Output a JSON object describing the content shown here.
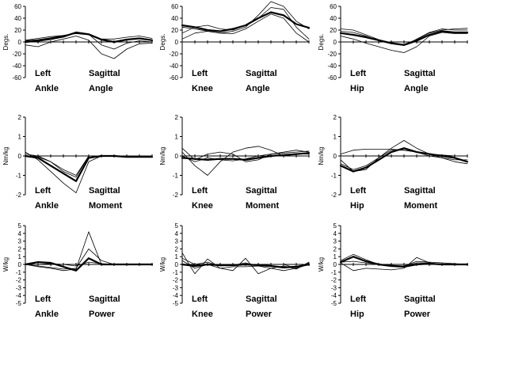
{
  "chart_data": [
    {
      "type": "line",
      "caption": [
        "Left",
        "Ankle",
        "Sagittal",
        "Angle"
      ],
      "ylabel": "Degs.",
      "ylim": [
        -60,
        60
      ],
      "yticks": [
        -60,
        -40,
        -20,
        0,
        20,
        40,
        60
      ],
      "x": [
        0,
        10,
        20,
        30,
        40,
        50,
        60,
        70,
        80,
        90,
        100
      ],
      "series": [
        {
          "values": [
            0,
            2,
            5,
            9,
            16,
            13,
            4,
            0,
            4,
            6,
            3
          ],
          "emphasis": "bold"
        },
        {
          "values": [
            3,
            6,
            9,
            11,
            14,
            12,
            5,
            5,
            8,
            10,
            6
          ]
        },
        {
          "values": [
            -5,
            -8,
            0,
            5,
            10,
            3,
            -20,
            -28,
            -12,
            -3,
            -2
          ]
        },
        {
          "values": [
            2,
            4,
            7,
            11,
            15,
            13,
            -5,
            -12,
            -2,
            2,
            0
          ]
        }
      ]
    },
    {
      "type": "line",
      "caption": [
        "Left",
        "Knee",
        "Sagittal",
        "Angle"
      ],
      "ylabel": "Degs.",
      "ylim": [
        -60,
        60
      ],
      "yticks": [
        -60,
        -40,
        -20,
        0,
        20,
        40,
        60
      ],
      "x": [
        0,
        10,
        20,
        30,
        40,
        50,
        60,
        70,
        80,
        90,
        100
      ],
      "series": [
        {
          "values": [
            28,
            25,
            20,
            18,
            22,
            28,
            40,
            50,
            45,
            30,
            24
          ],
          "emphasis": "bold"
        },
        {
          "values": [
            25,
            22,
            18,
            15,
            18,
            25,
            45,
            68,
            60,
            35,
            22
          ]
        },
        {
          "values": [
            15,
            25,
            28,
            22,
            20,
            28,
            40,
            58,
            55,
            25,
            5
          ]
        },
        {
          "values": [
            5,
            15,
            18,
            15,
            14,
            22,
            35,
            47,
            40,
            15,
            0
          ]
        }
      ]
    },
    {
      "type": "line",
      "caption": [
        "Left",
        "Hip",
        "Sagittal",
        "Angle"
      ],
      "ylabel": "Degs.",
      "ylim": [
        -60,
        60
      ],
      "yticks": [
        -60,
        -40,
        -20,
        0,
        20,
        40,
        60
      ],
      "x": [
        0,
        10,
        20,
        30,
        40,
        50,
        60,
        70,
        80,
        90,
        100
      ],
      "series": [
        {
          "values": [
            15,
            12,
            8,
            3,
            -2,
            -5,
            2,
            12,
            18,
            16,
            16
          ],
          "emphasis": "bold"
        },
        {
          "values": [
            22,
            20,
            12,
            4,
            -2,
            -4,
            4,
            15,
            20,
            22,
            23
          ]
        },
        {
          "values": [
            10,
            5,
            -2,
            -8,
            -14,
            -18,
            -8,
            10,
            16,
            14,
            14
          ]
        },
        {
          "values": [
            18,
            16,
            10,
            2,
            -3,
            -6,
            5,
            16,
            22,
            20,
            20
          ]
        }
      ]
    },
    {
      "type": "line",
      "caption": [
        "Left",
        "Ankle",
        "Sagittal",
        "Moment"
      ],
      "ylabel": "Nm/kg",
      "ylim": [
        -2,
        2
      ],
      "yticks": [
        -2,
        -1,
        0,
        1,
        2
      ],
      "x": [
        0,
        10,
        20,
        30,
        40,
        50,
        60,
        70,
        80,
        90,
        100
      ],
      "series": [
        {
          "values": [
            0,
            -0.1,
            -0.5,
            -0.9,
            -1.3,
            -0.1,
            0,
            0,
            -0.05,
            -0.05,
            -0.05
          ],
          "emphasis": "bold"
        },
        {
          "values": [
            0.1,
            0,
            -0.3,
            -0.8,
            -1.1,
            0,
            0,
            0,
            0,
            0,
            0
          ]
        },
        {
          "values": [
            0.2,
            -0.2,
            -0.8,
            -1.4,
            -1.9,
            -0.3,
            0,
            0,
            0,
            0,
            0
          ]
        },
        {
          "values": [
            0,
            -0.05,
            -0.3,
            -0.7,
            -1.0,
            0,
            0,
            0,
            0,
            0,
            0
          ]
        }
      ]
    },
    {
      "type": "line",
      "caption": [
        "Left",
        "Knee",
        "Sagittal",
        "Moment"
      ],
      "ylabel": "Nm/kg",
      "ylim": [
        -2,
        2
      ],
      "yticks": [
        -2,
        -1,
        0,
        1,
        2
      ],
      "x": [
        0,
        10,
        20,
        30,
        40,
        50,
        60,
        70,
        80,
        90,
        100
      ],
      "series": [
        {
          "values": [
            -0.1,
            -0.15,
            -0.2,
            -0.15,
            -0.15,
            -0.2,
            -0.1,
            0,
            0.05,
            0.1,
            0.15
          ],
          "emphasis": "bold"
        },
        {
          "values": [
            0,
            -0.3,
            -0.1,
            -0.2,
            -0.25,
            -0.15,
            0,
            0.1,
            0.15,
            0.2,
            0.25
          ]
        },
        {
          "values": [
            0.2,
            -0.5,
            -1.0,
            -0.3,
            0.2,
            0.4,
            0.5,
            0.3,
            0,
            0.1,
            0.1
          ]
        },
        {
          "values": [
            0.4,
            -0.2,
            0.1,
            0.2,
            0.1,
            -0.3,
            -0.2,
            0.1,
            0.2,
            0.3,
            0.2
          ]
        }
      ]
    },
    {
      "type": "line",
      "caption": [
        "Left",
        "Hip",
        "Sagittal",
        "Moment"
      ],
      "ylabel": "Nm/kg",
      "ylim": [
        -2,
        2
      ],
      "yticks": [
        -2,
        -1,
        0,
        1,
        2
      ],
      "x": [
        0,
        10,
        20,
        30,
        40,
        50,
        60,
        70,
        80,
        90,
        100
      ],
      "series": [
        {
          "values": [
            -0.5,
            -0.8,
            -0.6,
            -0.2,
            0.2,
            0.4,
            0.2,
            0.1,
            0,
            -0.1,
            -0.3
          ],
          "emphasis": "bold"
        },
        {
          "values": [
            -0.2,
            -0.8,
            -0.7,
            -0.1,
            0.4,
            0.8,
            0.4,
            0.1,
            -0.1,
            -0.2,
            -0.2
          ]
        },
        {
          "values": [
            -0.4,
            -0.7,
            -0.5,
            -0.1,
            0.3,
            0.3,
            0.2,
            0,
            -0.1,
            -0.3,
            -0.4
          ]
        },
        {
          "values": [
            0.1,
            0.3,
            0.35,
            0.35,
            0.35,
            0.3,
            0.2,
            0.1,
            0.05,
            0,
            0
          ]
        }
      ]
    },
    {
      "type": "line",
      "caption": [
        "Left",
        "Ankle",
        "Sagittal",
        "Power"
      ],
      "ylabel": "W/kg",
      "ylim": [
        -5,
        5
      ],
      "yticks": [
        -5,
        -4,
        -3,
        -2,
        -1,
        0,
        1,
        2,
        3,
        4,
        5
      ],
      "x": [
        0,
        10,
        20,
        30,
        40,
        50,
        60,
        70,
        80,
        90,
        100
      ],
      "series": [
        {
          "values": [
            0,
            0.3,
            0.2,
            -0.3,
            -0.8,
            0.8,
            0,
            0,
            0,
            0,
            0
          ],
          "emphasis": "bold"
        },
        {
          "values": [
            0,
            -0.3,
            -0.5,
            -0.8,
            -0.6,
            4.2,
            0,
            0,
            0,
            0,
            0
          ]
        },
        {
          "values": [
            0,
            -0.2,
            -0.4,
            -0.6,
            -0.5,
            2.0,
            0.5,
            0,
            0,
            0,
            0
          ]
        },
        {
          "values": [
            0,
            0,
            0.1,
            0,
            -0.2,
            0.3,
            0.1,
            0,
            0,
            0,
            0
          ]
        }
      ]
    },
    {
      "type": "line",
      "caption": [
        "Left",
        "Knee",
        "Sagittal",
        "Power"
      ],
      "ylabel": "W/kg",
      "ylim": [
        -5,
        5
      ],
      "yticks": [
        -5,
        -4,
        -3,
        -2,
        -1,
        0,
        1,
        2,
        3,
        4,
        5
      ],
      "x": [
        0,
        10,
        20,
        30,
        40,
        50,
        60,
        70,
        80,
        90,
        100
      ],
      "series": [
        {
          "values": [
            0,
            -0.2,
            0,
            -0.1,
            -0.1,
            0,
            -0.1,
            -0.2,
            -0.4,
            -0.3,
            0
          ],
          "emphasis": "bold"
        },
        {
          "values": [
            1.5,
            -1.2,
            0.7,
            -0.5,
            -0.8,
            0.8,
            -1.2,
            -0.5,
            -0.2,
            -0.6,
            0.3
          ]
        },
        {
          "values": [
            0.5,
            -0.5,
            0,
            -0.5,
            -0.3,
            -0.3,
            -0.2,
            -0.5,
            -0.8,
            -0.5,
            0
          ]
        },
        {
          "values": [
            0.8,
            0,
            0.3,
            -0.2,
            -0.1,
            0.2,
            -0.2,
            0,
            0,
            -0.5,
            0.2
          ]
        }
      ]
    },
    {
      "type": "line",
      "caption": [
        "Left",
        "Hip",
        "Sagittal",
        "Power"
      ],
      "ylabel": "W/kg",
      "ylim": [
        -5,
        5
      ],
      "yticks": [
        -5,
        -4,
        -3,
        -2,
        -1,
        0,
        1,
        2,
        3,
        4,
        5
      ],
      "x": [
        0,
        10,
        20,
        30,
        40,
        50,
        60,
        70,
        80,
        90,
        100
      ],
      "series": [
        {
          "values": [
            0.3,
            1.0,
            0.4,
            0,
            -0.2,
            -0.3,
            0,
            0.1,
            0,
            0,
            0
          ],
          "emphasis": "bold"
        },
        {
          "values": [
            0.5,
            1.3,
            0.6,
            0,
            -0.2,
            -0.2,
            0.2,
            0.2,
            0,
            0,
            0
          ]
        },
        {
          "values": [
            0.2,
            -0.8,
            -0.5,
            -0.6,
            -0.7,
            -0.5,
            0.9,
            0.2,
            0,
            0,
            0
          ]
        },
        {
          "values": [
            0.3,
            0.4,
            0.2,
            0,
            -0.1,
            -0.2,
            0.4,
            0.3,
            0.2,
            0.1,
            0
          ]
        }
      ]
    }
  ]
}
